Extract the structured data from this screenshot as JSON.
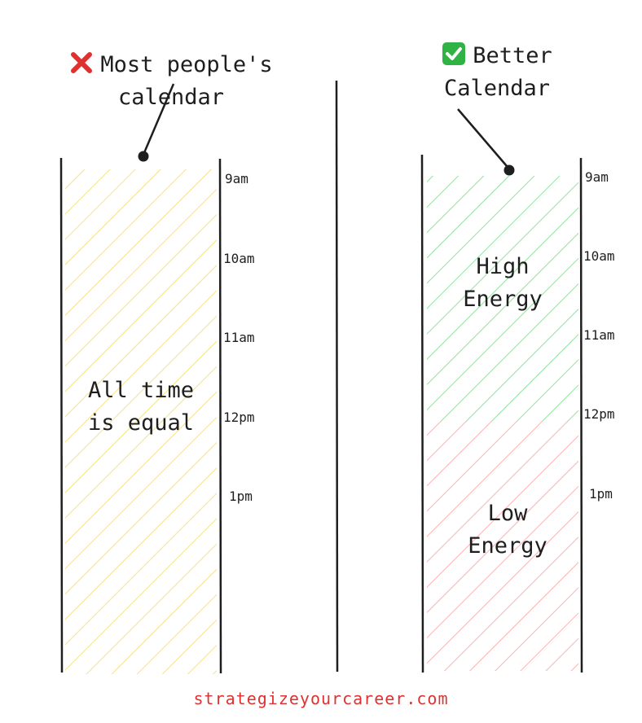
{
  "left": {
    "icon": "cross-mark-icon",
    "caption": "Most people's\ncalendar",
    "inner_label": "All time\nis equal",
    "fill_color": "#f5d85a"
  },
  "right": {
    "icon": "check-mark-icon",
    "caption": "Better\nCalendar",
    "high_label": "High\nEnergy",
    "low_label": "Low\nEnergy",
    "high_color": "#69db7c",
    "low_color": "#ff8787"
  },
  "times": [
    "9am",
    "10am",
    "11am",
    "12pm",
    "1pm"
  ],
  "footer": "strategizeyourcareer.com",
  "accent_red": "#e03131",
  "accent_green": "#2fb344"
}
